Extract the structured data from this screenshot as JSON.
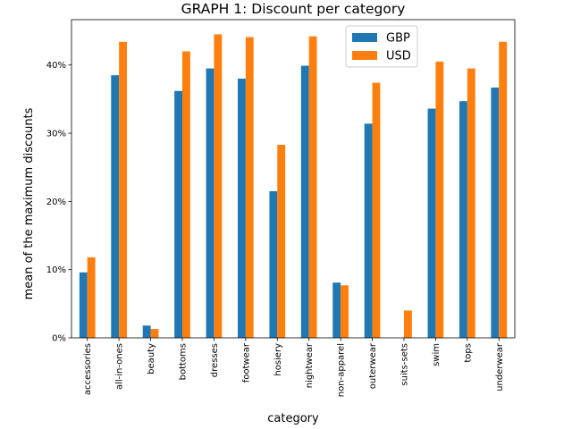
{
  "chart_data": {
    "type": "bar",
    "title": "GRAPH 1: Discount per category",
    "xlabel": "category",
    "ylabel": "mean of the maximum discounts",
    "categories": [
      "accessories",
      "all-in-ones",
      "beauty",
      "bottoms",
      "dresses",
      "footwear",
      "hosiery",
      "nightwear",
      "non-apparel",
      "outerwear",
      "suits-sets",
      "swim",
      "tops",
      "underwear"
    ],
    "series": [
      {
        "name": "GBP",
        "color": "#1f77b4",
        "values": [
          0.096,
          0.385,
          0.018,
          0.362,
          0.395,
          0.38,
          0.215,
          0.399,
          0.081,
          0.314,
          null,
          0.336,
          0.347,
          0.367
        ]
      },
      {
        "name": "USD",
        "color": "#ff7f0e",
        "values": [
          0.118,
          0.434,
          0.013,
          0.42,
          0.445,
          0.441,
          0.283,
          0.442,
          0.077,
          0.374,
          0.04,
          0.405,
          0.395,
          0.434
        ]
      }
    ],
    "ylim": [
      0,
      0.4665
    ],
    "yticks": [
      0,
      0.1,
      0.2,
      0.3,
      0.4
    ],
    "ytick_labels": [
      "0%",
      "10%",
      "20%",
      "30%",
      "40%"
    ],
    "legend_position": "top-center",
    "grid": false
  }
}
